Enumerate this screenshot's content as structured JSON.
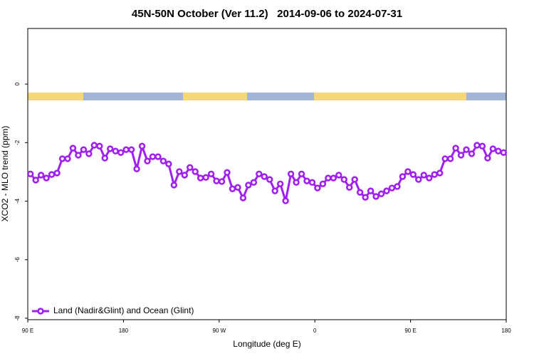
{
  "chart_data": {
    "type": "line",
    "title": "45N-50N October (Ver 11.2)   2014-09-06 to 2024-07-31",
    "x_label": "Longitude (deg E)",
    "y_label": "XCO2 - MLO trend (ppm)",
    "xlim": [
      90,
      540
    ],
    "xticks": [
      {
        "value": 90,
        "label": "90 E"
      },
      180,
      {
        "value": 270,
        "label": "90 W"
      },
      {
        "value": 360,
        "label": "0"
      },
      {
        "value": 450,
        "label": "90 E"
      },
      {
        "value": 540,
        "label": "180"
      }
    ],
    "ylim": [
      -8.05,
      1.9
    ],
    "yticks": [
      -8,
      -6,
      -4,
      -2,
      0
    ],
    "legend": "bottom-left",
    "grid": false,
    "x": [
      92.5,
      97.5,
      102.5,
      107.5,
      112.5,
      117.5,
      122.5,
      127.5,
      132.5,
      137.5,
      142.5,
      147.5,
      152.5,
      157.5,
      162.5,
      167.5,
      172.5,
      177.5,
      182.5,
      187.5,
      192.5,
      197.5,
      202.5,
      207.5,
      212.5,
      217.5,
      222.5,
      227.5,
      232.5,
      237.5,
      242.5,
      247.5,
      252.5,
      257.5,
      262.5,
      267.5,
      272.5,
      277.5,
      282.5,
      287.5,
      292.5,
      297.5,
      302.5,
      307.5,
      312.5,
      317.5,
      322.5,
      327.5,
      332.5,
      337.5,
      342.5,
      347.5,
      352.5,
      357.5,
      362.5,
      367.5,
      372.5,
      377.5,
      382.5,
      387.5,
      392.5,
      397.5,
      402.5,
      407.5,
      412.5,
      417.5,
      422.5,
      427.5,
      432.5,
      437.5,
      442.5,
      447.5,
      452.5,
      457.5,
      462.5,
      467.5,
      472.5,
      477.5,
      482.5,
      487.5,
      492.5,
      497.5,
      502.5,
      507.5,
      512.5,
      517.5,
      522.5,
      527.5,
      532.5,
      537.5
    ],
    "series": [
      {
        "name": "Land (Nadir&Glint) and Ocean (Glint)",
        "color": "#a020f0",
        "values": [
          -3.07,
          -3.28,
          -3.11,
          -3.21,
          -3.09,
          -3.04,
          -2.55,
          -2.55,
          -2.19,
          -2.43,
          -2.24,
          -2.38,
          -2.09,
          -2.12,
          -2.53,
          -2.21,
          -2.29,
          -2.34,
          -2.24,
          -2.24,
          -2.9,
          -2.12,
          -2.63,
          -2.48,
          -2.48,
          -2.63,
          -2.73,
          -3.45,
          -2.99,
          -3.11,
          -2.85,
          -2.99,
          -3.21,
          -3.19,
          -3.07,
          -3.31,
          -3.33,
          -3.02,
          -3.58,
          -3.53,
          -3.89,
          -3.45,
          -3.36,
          -3.07,
          -3.16,
          -3.26,
          -3.65,
          -3.41,
          -3.99,
          -3.07,
          -3.36,
          -3.07,
          -3.31,
          -3.36,
          -3.55,
          -3.41,
          -3.21,
          -3.21,
          -3.11,
          -3.26,
          -3.53,
          -3.26,
          -3.7,
          -3.87,
          -3.65,
          -3.84,
          -3.75,
          -3.65,
          -3.55,
          -3.5,
          -3.16,
          -2.99,
          -3.09,
          -3.26,
          -3.11,
          -3.21,
          -3.09,
          -3.04,
          -2.55,
          -2.55,
          -2.19,
          -2.43,
          -2.24,
          -2.38,
          -2.09,
          -2.12,
          -2.53,
          -2.21,
          -2.29,
          -2.34
        ]
      }
    ]
  }
}
